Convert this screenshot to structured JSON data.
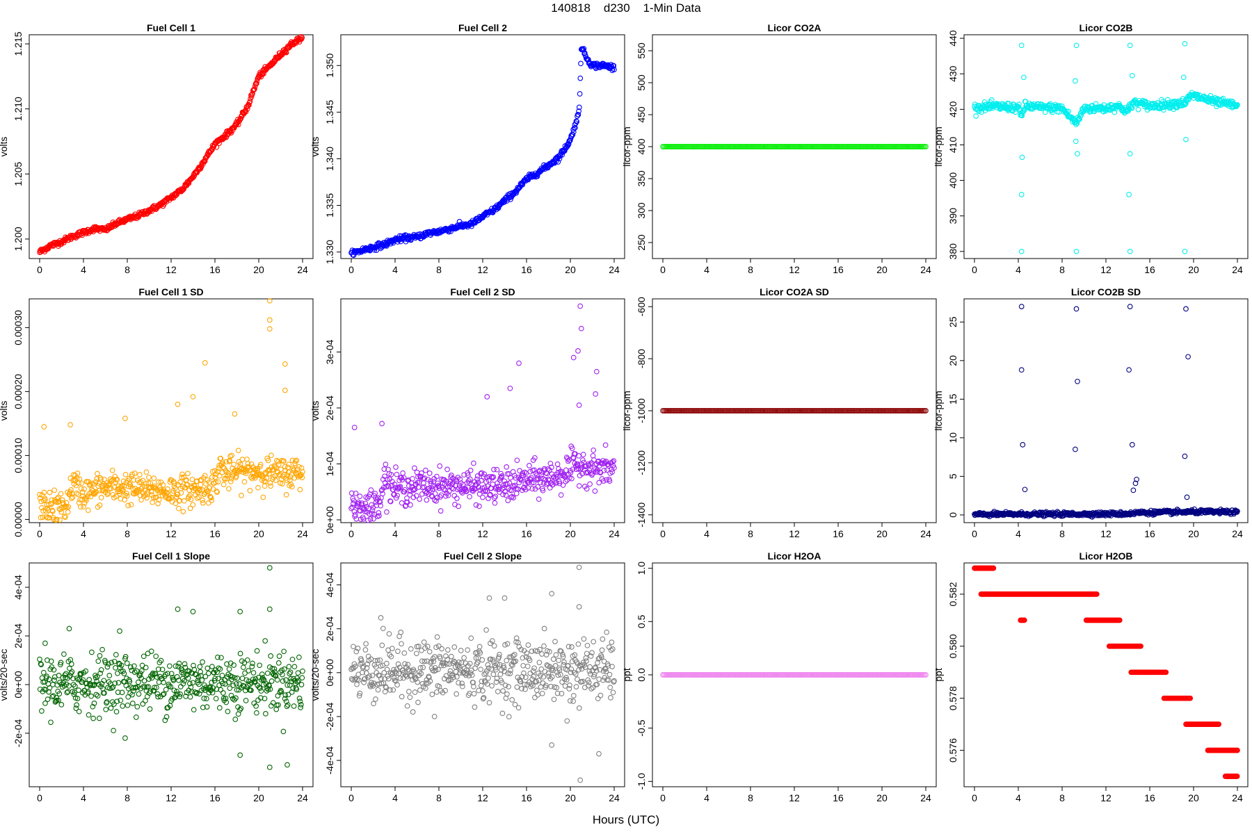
{
  "figure": {
    "title": "140818    d230    1-Min Data",
    "xlabel": "Hours (UTC)"
  },
  "chart_data": [
    {
      "type": "scatter",
      "title": "Fuel Cell 1",
      "ylabel": "volts",
      "color": "#ff0000",
      "xlim": [
        0,
        24
      ],
      "ylim": [
        1.1985,
        1.2157
      ],
      "xticks": [
        "0",
        "4",
        "8",
        "12",
        "16",
        "20",
        "24"
      ],
      "yticks": [
        "1.200",
        "1.205",
        "1.210",
        "1.215"
      ],
      "x": [
        0,
        1,
        2,
        3,
        4,
        5,
        6,
        7,
        8,
        9,
        10,
        11,
        12,
        13,
        14,
        15,
        16,
        17,
        18,
        19,
        20,
        21,
        22,
        23,
        24
      ],
      "y": [
        1.199,
        1.1995,
        1.1998,
        1.2002,
        1.2005,
        1.2008,
        1.2007,
        1.2012,
        1.2015,
        1.2018,
        1.2022,
        1.2026,
        1.2032,
        1.2038,
        1.2048,
        1.206,
        1.2073,
        1.208,
        1.2088,
        1.2102,
        1.2125,
        1.2133,
        1.2142,
        1.215,
        1.2155
      ],
      "jitter": 0.0002
    },
    {
      "type": "scatter",
      "title": "Fuel Cell 2",
      "ylabel": "volts",
      "color": "#0000ff",
      "xlim": [
        0,
        24
      ],
      "ylim": [
        1.3293,
        1.3533
      ],
      "xticks": [
        "0",
        "4",
        "8",
        "12",
        "16",
        "20",
        "24"
      ],
      "yticks": [
        "1.330",
        "1.335",
        "1.340",
        "1.345",
        "1.350"
      ],
      "x": [
        0,
        1,
        2,
        3,
        4,
        5,
        6,
        7,
        8,
        9,
        10,
        11,
        12,
        13,
        14,
        15,
        16,
        17,
        18,
        19,
        20,
        20.8,
        21.0,
        21.5,
        22,
        23,
        24
      ],
      "y": [
        1.3298,
        1.3302,
        1.3305,
        1.3308,
        1.3313,
        1.3315,
        1.3316,
        1.332,
        1.3322,
        1.3325,
        1.3328,
        1.333,
        1.3338,
        1.3345,
        1.3355,
        1.3365,
        1.3378,
        1.3385,
        1.3393,
        1.3402,
        1.342,
        1.345,
        1.352,
        1.3508,
        1.35,
        1.35,
        1.3498
      ],
      "jitter": 0.0003
    },
    {
      "type": "scatter",
      "title": "Licor CO2A",
      "ylabel": "licor-ppm",
      "color": "#00ee00",
      "xlim": [
        0,
        24
      ],
      "ylim": [
        225,
        575
      ],
      "xticks": [
        "0",
        "4",
        "8",
        "12",
        "16",
        "20",
        "24"
      ],
      "yticks": [
        "250",
        "300",
        "350",
        "400",
        "450",
        "500",
        "550"
      ],
      "x": [
        0,
        24
      ],
      "y": [
        400,
        400
      ],
      "jitter": 0
    },
    {
      "type": "scatter",
      "title": "Licor CO2B",
      "ylabel": "licor-ppm",
      "color": "#00eeee",
      "xlim": [
        0,
        24
      ],
      "ylim": [
        378,
        441
      ],
      "xticks": [
        "0",
        "4",
        "8",
        "12",
        "16",
        "20",
        "24"
      ],
      "yticks": [
        "380",
        "390",
        "400",
        "410",
        "420",
        "430",
        "440"
      ],
      "x": [
        0,
        2,
        4,
        4.3,
        4.6,
        6,
        8,
        9.3,
        10,
        12,
        13,
        14,
        14.5,
        16,
        18,
        19.3,
        19.8,
        21,
        22,
        24
      ],
      "y": [
        420.5,
        420.8,
        420.5,
        418,
        421,
        420.5,
        420.3,
        416,
        420.3,
        420.3,
        421,
        419.5,
        422,
        421,
        421.5,
        422,
        424,
        423,
        422,
        421
      ],
      "jitter": 1.2,
      "outliers": [
        {
          "x": 4.3,
          "y": 438
        },
        {
          "x": 4.3,
          "y": 380
        },
        {
          "x": 4.3,
          "y": 396
        },
        {
          "x": 4.35,
          "y": 406.5
        },
        {
          "x": 4.5,
          "y": 429
        },
        {
          "x": 9.3,
          "y": 438
        },
        {
          "x": 9.3,
          "y": 380
        },
        {
          "x": 9.4,
          "y": 407.5
        },
        {
          "x": 9.25,
          "y": 411
        },
        {
          "x": 9.2,
          "y": 428
        },
        {
          "x": 14.2,
          "y": 438
        },
        {
          "x": 14.2,
          "y": 380
        },
        {
          "x": 14.1,
          "y": 396
        },
        {
          "x": 14.2,
          "y": 407.5
        },
        {
          "x": 14.4,
          "y": 429.5
        },
        {
          "x": 19.2,
          "y": 438.5
        },
        {
          "x": 19.2,
          "y": 380
        },
        {
          "x": 19.3,
          "y": 411.5
        },
        {
          "x": 19.1,
          "y": 429
        }
      ]
    },
    {
      "type": "scatter",
      "title": "Fuel Cell 1 SD",
      "ylabel": "volts",
      "color": "#ffa500",
      "xlim": [
        0,
        24
      ],
      "ylim": [
        -5e-06,
        0.000345
      ],
      "xticks": [
        "0",
        "4",
        "8",
        "12",
        "16",
        "20",
        "24"
      ],
      "yticks": [
        "0.00000",
        "0.00010",
        "0.00020",
        "0.00030"
      ],
      "x": [
        0,
        1,
        2,
        2.5,
        3,
        4,
        5,
        6,
        8,
        10,
        12,
        14,
        15,
        16,
        16.5,
        17,
        18,
        20,
        22,
        24
      ],
      "y": [
        2e-05,
        1.8e-05,
        1.8e-05,
        2.2e-05,
        5.5e-05,
        4e-05,
        4.5e-05,
        5e-05,
        5e-05,
        4.5e-05,
        4.5e-05,
        4.5e-05,
        5e-05,
        5.5e-05,
        8.5e-05,
        7e-05,
        7.5e-05,
        7.5e-05,
        7e-05,
        7.5e-05
      ],
      "jitter": 2.5e-05,
      "outliers": [
        {
          "x": 0.4,
          "y": 0.000145
        },
        {
          "x": 2.8,
          "y": 0.000148
        },
        {
          "x": 7.8,
          "y": 0.000158
        },
        {
          "x": 12.6,
          "y": 0.00018
        },
        {
          "x": 14.0,
          "y": 0.000192
        },
        {
          "x": 15.1,
          "y": 0.000245
        },
        {
          "x": 17.8,
          "y": 0.000165
        },
        {
          "x": 21.0,
          "y": 0.000342
        },
        {
          "x": 21.0,
          "y": 0.000312
        },
        {
          "x": 21.0,
          "y": 0.000298
        },
        {
          "x": 22.4,
          "y": 0.000243
        },
        {
          "x": 22.4,
          "y": 0.000202
        }
      ]
    },
    {
      "type": "scatter",
      "title": "Fuel Cell 2 SD",
      "ylabel": "volts",
      "color": "#a020f0",
      "xlim": [
        0,
        24
      ],
      "ylim": [
        -5e-06,
        0.000395
      ],
      "xticks": [
        "0",
        "4",
        "8",
        "12",
        "16",
        "20",
        "24"
      ],
      "yticks": [
        "0e+00",
        "1e-04",
        "2e-04",
        "3e-04"
      ],
      "x": [
        0,
        1,
        2,
        2.5,
        3,
        4,
        6,
        8,
        10,
        12,
        14,
        16,
        18,
        19,
        20,
        21,
        22,
        24
      ],
      "y": [
        3e-05,
        2.2e-05,
        2.2e-05,
        3e-05,
        7.5e-05,
        5.5e-05,
        6e-05,
        6e-05,
        6e-05,
        6e-05,
        6e-05,
        7e-05,
        7.5e-05,
        8e-05,
        9e-05,
        0.0001,
        9e-05,
        9e-05
      ],
      "jitter": 3e-05,
      "outliers": [
        {
          "x": 0.3,
          "y": 0.000165
        },
        {
          "x": 2.8,
          "y": 0.000172
        },
        {
          "x": 12.4,
          "y": 0.00022
        },
        {
          "x": 14.5,
          "y": 0.000235
        },
        {
          "x": 15.3,
          "y": 0.00028
        },
        {
          "x": 20.3,
          "y": 0.00029
        },
        {
          "x": 20.7,
          "y": 0.000302
        },
        {
          "x": 20.9,
          "y": 0.000382
        },
        {
          "x": 21.0,
          "y": 0.000342
        },
        {
          "x": 22.4,
          "y": 0.000265
        },
        {
          "x": 22.3,
          "y": 0.000225
        },
        {
          "x": 20.8,
          "y": 0.000205
        }
      ]
    },
    {
      "type": "scatter",
      "title": "Licor CO2A SD",
      "ylabel": "licor-ppm",
      "color": "#8b0000",
      "xlim": [
        0,
        24
      ],
      "ylim": [
        -1430,
        -570
      ],
      "xticks": [
        "0",
        "4",
        "8",
        "12",
        "16",
        "20",
        "24"
      ],
      "yticks": [
        "-1400",
        "-1200",
        "-1000",
        "-800",
        "-600"
      ],
      "x": [
        0,
        24
      ],
      "y": [
        -1000,
        -1000
      ],
      "jitter": 0
    },
    {
      "type": "scatter",
      "title": "Licor CO2B SD",
      "ylabel": "licor-ppm",
      "color": "#000080",
      "xlim": [
        0,
        24
      ],
      "ylim": [
        -1,
        28
      ],
      "xticks": [
        "0",
        "4",
        "8",
        "12",
        "16",
        "20",
        "24"
      ],
      "yticks": [
        "0",
        "5",
        "10",
        "15",
        "20",
        "25"
      ],
      "x": [
        0,
        4,
        8,
        12,
        14,
        15,
        16,
        18,
        20,
        22,
        24
      ],
      "y": [
        0.05,
        0.1,
        0.1,
        0.12,
        0.15,
        0.3,
        0.3,
        0.35,
        0.4,
        0.4,
        0.35
      ],
      "jitter": 0.25,
      "outliers": [
        {
          "x": 4.3,
          "y": 27
        },
        {
          "x": 4.3,
          "y": 18.8
        },
        {
          "x": 4.4,
          "y": 9.1
        },
        {
          "x": 4.6,
          "y": 3.3
        },
        {
          "x": 9.3,
          "y": 26.7
        },
        {
          "x": 9.4,
          "y": 17.3
        },
        {
          "x": 9.2,
          "y": 8.5
        },
        {
          "x": 14.2,
          "y": 27
        },
        {
          "x": 14.1,
          "y": 18.8
        },
        {
          "x": 14.4,
          "y": 9.1
        },
        {
          "x": 14.8,
          "y": 4.6
        },
        {
          "x": 14.7,
          "y": 4.1
        },
        {
          "x": 14.5,
          "y": 3.2
        },
        {
          "x": 19.3,
          "y": 26.7
        },
        {
          "x": 19.5,
          "y": 20.5
        },
        {
          "x": 19.2,
          "y": 7.6
        },
        {
          "x": 19.4,
          "y": 2.3
        }
      ]
    },
    {
      "type": "scatter",
      "title": "Fuel Cell 1 Slope",
      "ylabel": "volts/20-sec",
      "color": "#006400",
      "xlim": [
        0,
        24
      ],
      "ylim": [
        -0.00042,
        0.0005
      ],
      "xticks": [
        "0",
        "4",
        "8",
        "12",
        "16",
        "20",
        "24"
      ],
      "yticks": [
        "-2e-04",
        "0e+00",
        "2e-04",
        "4e-04"
      ],
      "x": [
        0,
        3,
        6,
        12,
        18,
        24
      ],
      "y": [
        0,
        0,
        1e-05,
        1e-05,
        1e-05,
        1e-05
      ],
      "jitter": 0.00012,
      "outliers": [
        {
          "x": 0.5,
          "y": 0.00017
        },
        {
          "x": 2.7,
          "y": 0.00023
        },
        {
          "x": 7.3,
          "y": 0.00022
        },
        {
          "x": 12.6,
          "y": 0.00031
        },
        {
          "x": 14.0,
          "y": 0.0003
        },
        {
          "x": 18.3,
          "y": 0.0003
        },
        {
          "x": 21.0,
          "y": 0.00048
        },
        {
          "x": 21.0,
          "y": 0.00031
        },
        {
          "x": 18.3,
          "y": -0.00029
        },
        {
          "x": 21.0,
          "y": -0.00034
        },
        {
          "x": 22.6,
          "y": -0.00033
        },
        {
          "x": 7.8,
          "y": -0.00022
        }
      ]
    },
    {
      "type": "scatter",
      "title": "Fuel Cell 2 Slope",
      "ylabel": "volts/20-sec",
      "color": "#808080",
      "xlim": [
        0,
        24
      ],
      "ylim": [
        -0.00052,
        0.0005
      ],
      "xticks": [
        "0",
        "4",
        "8",
        "12",
        "16",
        "20",
        "24"
      ],
      "yticks": [
        "-4e-04",
        "-2e-04",
        "0e+00",
        "2e-04",
        "4e-04"
      ],
      "x": [
        0,
        3,
        6,
        12,
        18,
        24
      ],
      "y": [
        1e-05,
        1e-05,
        1e-05,
        1e-05,
        1e-05,
        1e-05
      ],
      "jitter": 0.00014,
      "outliers": [
        {
          "x": 2.7,
          "y": 0.00025
        },
        {
          "x": 12.6,
          "y": 0.00034
        },
        {
          "x": 14.0,
          "y": 0.00034
        },
        {
          "x": 18.3,
          "y": 0.00036
        },
        {
          "x": 20.8,
          "y": 0.00048
        },
        {
          "x": 20.8,
          "y": 0.0003
        },
        {
          "x": 18.3,
          "y": -0.00033
        },
        {
          "x": 20.9,
          "y": -0.00049
        },
        {
          "x": 22.6,
          "y": -0.00037
        },
        {
          "x": 19.7,
          "y": -0.00022
        },
        {
          "x": 7.6,
          "y": -0.0002
        }
      ]
    },
    {
      "type": "scatter",
      "title": "Licor H2OA",
      "ylabel": "ppt",
      "color": "#ee82ee",
      "xlim": [
        0,
        24
      ],
      "ylim": [
        -1.05,
        1.05
      ],
      "xticks": [
        "0",
        "4",
        "8",
        "12",
        "16",
        "20",
        "24"
      ],
      "yticks": [
        "-1.0",
        "-0.5",
        "0.0",
        "0.5",
        "1.0"
      ],
      "x": [
        0,
        24
      ],
      "y": [
        0,
        0
      ],
      "jitter": 0
    },
    {
      "type": "scatter",
      "title": "Licor H2OB",
      "ylabel": "ppt",
      "color": "#ff0000",
      "xlim": [
        0,
        24
      ],
      "ylim": [
        0.5746,
        0.5832
      ],
      "xticks": [
        "0",
        "4",
        "8",
        "12",
        "16",
        "20",
        "24"
      ],
      "yticks": [
        "0.576",
        "0.578",
        "0.580",
        "0.582"
      ],
      "steps": [
        {
          "x0": 0.0,
          "x1": 1.8,
          "y": 0.583
        },
        {
          "x0": 0.6,
          "x1": 11.2,
          "y": 0.582
        },
        {
          "x0": 4.2,
          "x1": 4.6,
          "y": 0.581
        },
        {
          "x0": 10.2,
          "x1": 13.3,
          "y": 0.581
        },
        {
          "x0": 12.3,
          "x1": 15.2,
          "y": 0.58
        },
        {
          "x0": 14.3,
          "x1": 17.5,
          "y": 0.579
        },
        {
          "x0": 17.3,
          "x1": 19.7,
          "y": 0.578
        },
        {
          "x0": 19.3,
          "x1": 22.3,
          "y": 0.577
        },
        {
          "x0": 21.3,
          "x1": 24.0,
          "y": 0.576
        },
        {
          "x0": 22.9,
          "x1": 24.0,
          "y": 0.575
        }
      ]
    }
  ]
}
